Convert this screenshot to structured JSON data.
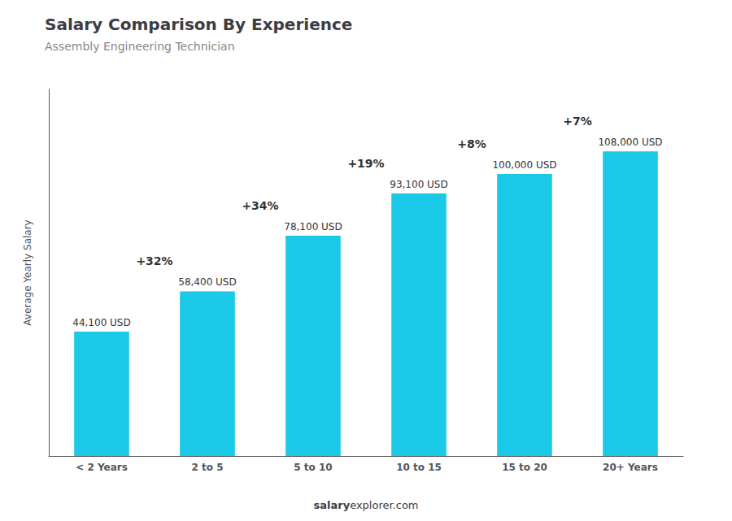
{
  "chart_data": {
    "type": "bar",
    "title": "Salary Comparison By Experience",
    "subtitle": "Assembly Engineering Technician",
    "categories": [
      "< 2 Years",
      "2 to 5",
      "5 to 10",
      "10 to 15",
      "15 to 20",
      "20+ Years"
    ],
    "values": [
      44100,
      58400,
      78100,
      93100,
      100000,
      108000
    ],
    "value_labels": [
      "44,100 USD",
      "58,400 USD",
      "78,100 USD",
      "93,100 USD",
      "100,000 USD",
      "108,000 USD"
    ],
    "data_labels": true,
    "color": "#1ac8e8",
    "ylabel": "Average Yearly Salary",
    "ylim": [
      0,
      130000
    ],
    "annotations": [
      "+32%",
      "+34%",
      "+19%",
      "+8%",
      "+7%"
    ],
    "footer": [
      "salary",
      "explorer.com"
    ],
    "grid": false,
    "tick_labels": "x"
  }
}
